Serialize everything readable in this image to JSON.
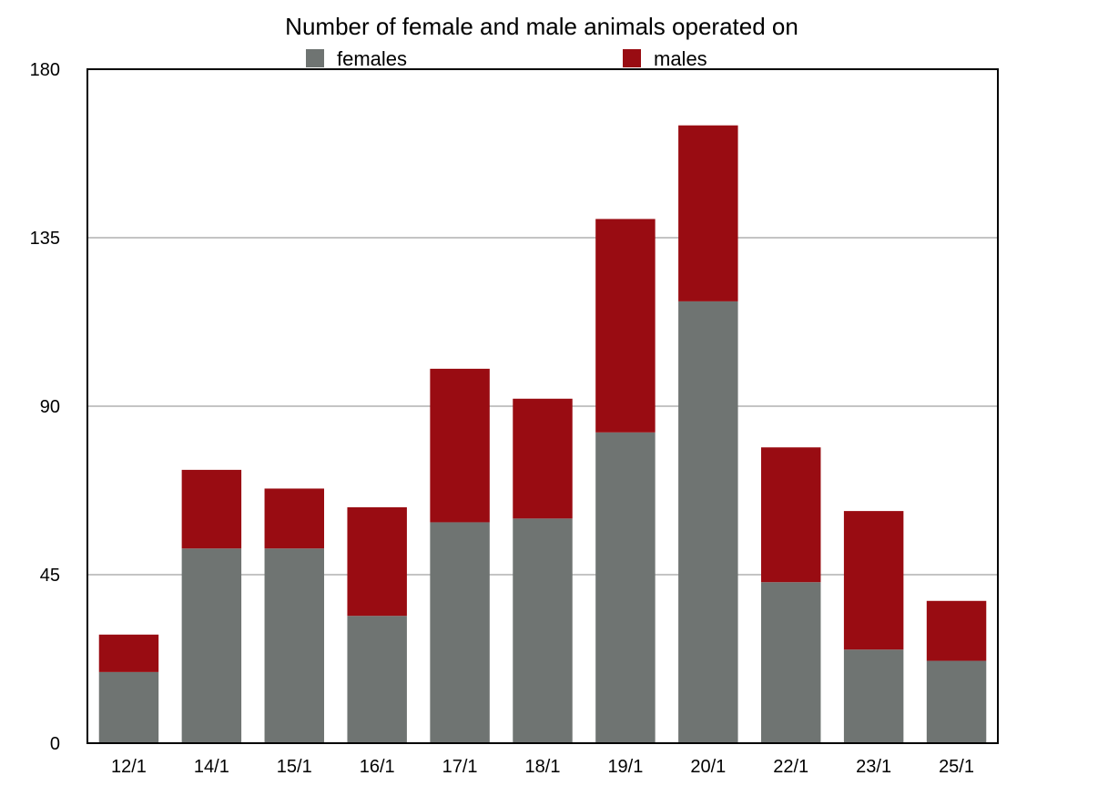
{
  "chart_data": {
    "type": "bar",
    "stacked": true,
    "title": "Number of female and male animals operated on",
    "xlabel": "",
    "ylabel": "",
    "categories": [
      "12/1",
      "14/1",
      "15/1",
      "16/1",
      "17/1",
      "18/1",
      "19/1",
      "20/1",
      "22/1",
      "23/1",
      "25/1"
    ],
    "series": [
      {
        "name": "females",
        "color": "#6f7472",
        "values": [
          19,
          52,
          52,
          34,
          59,
          60,
          83,
          118,
          43,
          25,
          22
        ]
      },
      {
        "name": "males",
        "color": "#990c12",
        "values": [
          10,
          21,
          16,
          29,
          41,
          32,
          57,
          47,
          36,
          37,
          16
        ]
      }
    ],
    "ylim": [
      0,
      180
    ],
    "yticks": [
      0,
      45,
      90,
      135,
      180
    ],
    "grid": true,
    "legend_position": "top"
  }
}
